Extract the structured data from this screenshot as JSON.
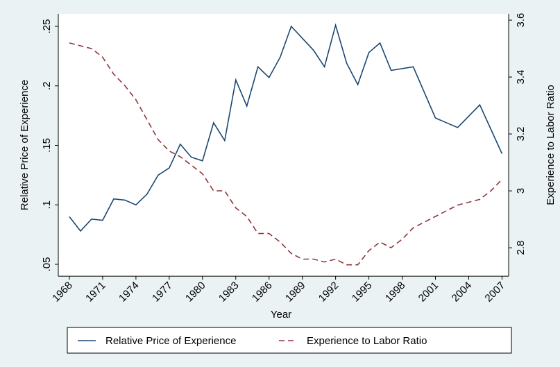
{
  "chart_data": {
    "type": "line",
    "x_label": "Year",
    "y_label": "Relative Price of Experience",
    "y2_label": "Experience to Labor Ratio",
    "xlim": [
      1967,
      2007.6
    ],
    "xticks": [
      1968,
      1971,
      1974,
      1977,
      1980,
      1983,
      1986,
      1989,
      1992,
      1995,
      1998,
      2001,
      2004,
      2007
    ],
    "ylim": [
      0.04,
      0.26
    ],
    "yticks": [
      {
        "value": 0.05,
        "label": ".05"
      },
      {
        "value": 0.1,
        "label": ".1"
      },
      {
        "value": 0.15,
        "label": ".15"
      },
      {
        "value": 0.2,
        "label": ".2"
      },
      {
        "value": 0.25,
        "label": ".25"
      }
    ],
    "y2lim": [
      2.7,
      3.62
    ],
    "y2ticks": [
      2.8,
      3,
      3.2,
      3.4,
      3.6
    ],
    "legend": "bottom",
    "series": [
      {
        "name": "Relative Price of Experience",
        "color": "#1a476f",
        "dash": false,
        "x": [
          1968,
          1969,
          1970,
          1971,
          1972,
          1973,
          1974,
          1975,
          1976,
          1977,
          1978,
          1979,
          1980,
          1981,
          1982,
          1983,
          1984,
          1985,
          1986,
          1987,
          1988,
          1989,
          1990,
          1991,
          1992,
          1993,
          1994,
          1995,
          1996,
          1997,
          1999,
          2001,
          2003,
          2005,
          2007
        ],
        "values": [
          0.09,
          0.078,
          0.088,
          0.087,
          0.105,
          0.104,
          0.1,
          0.109,
          0.125,
          0.131,
          0.151,
          0.14,
          0.137,
          0.169,
          0.154,
          0.205,
          0.183,
          0.216,
          0.207,
          0.224,
          0.25,
          0.24,
          0.23,
          0.216,
          0.251,
          0.219,
          0.201,
          0.228,
          0.236,
          0.213,
          0.216,
          0.173,
          0.165,
          0.184,
          0.143
        ]
      },
      {
        "name": "Experience to Labor Ratio",
        "color": "#90353b",
        "dash": true,
        "axis": "y2",
        "x": [
          1968,
          1969,
          1970,
          1971,
          1972,
          1973,
          1974,
          1975,
          1976,
          1977,
          1978,
          1979,
          1980,
          1981,
          1982,
          1983,
          1984,
          1985,
          1986,
          1987,
          1988,
          1989,
          1990,
          1991,
          1992,
          1993,
          1994,
          1995,
          1996,
          1997,
          1998,
          1999,
          2000,
          2001,
          2002,
          2003,
          2004,
          2005,
          2006,
          2007
        ],
        "values": [
          3.52,
          3.51,
          3.5,
          3.47,
          3.41,
          3.37,
          3.32,
          3.25,
          3.18,
          3.14,
          3.12,
          3.09,
          3.06,
          3.0,
          3.0,
          2.94,
          2.91,
          2.85,
          2.85,
          2.82,
          2.78,
          2.76,
          2.76,
          2.75,
          2.76,
          2.74,
          2.74,
          2.79,
          2.82,
          2.8,
          2.83,
          2.87,
          2.89,
          2.91,
          2.93,
          2.95,
          2.96,
          2.97,
          3.0,
          3.04
        ]
      }
    ]
  }
}
